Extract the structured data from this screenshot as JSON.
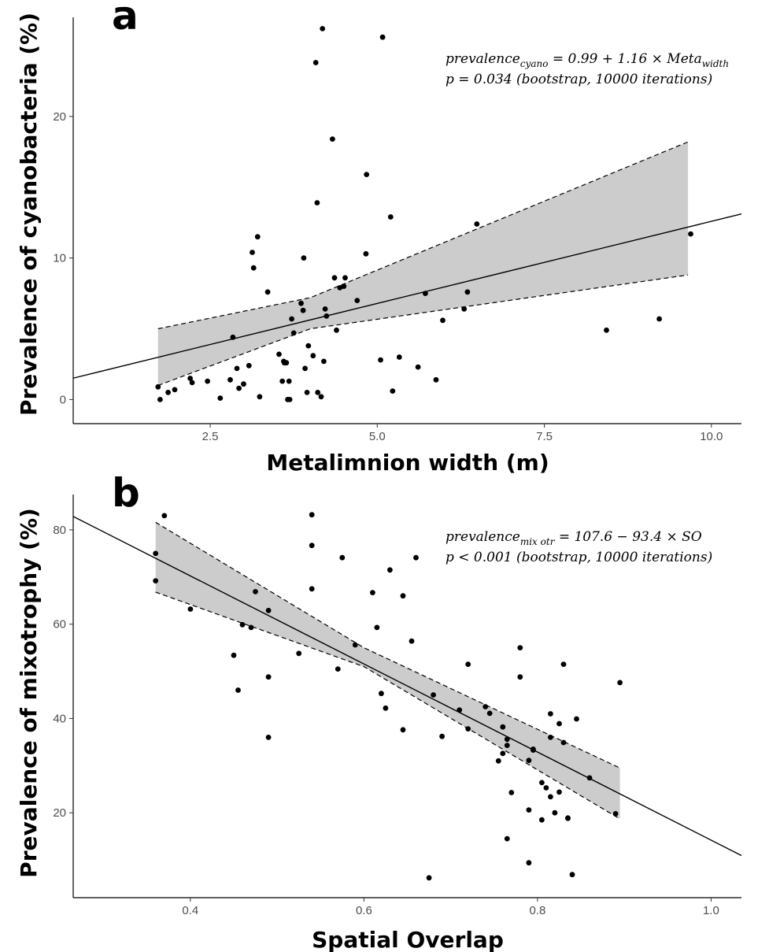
{
  "chart_data": [
    {
      "type": "scatter",
      "panel": "a",
      "title": "",
      "xlabel": "Metalimnion width (m)",
      "ylabel": "Prevalence of cyanobacteria (%)",
      "xlim": [
        0.45,
        10.45
      ],
      "ylim": [
        -1.7,
        27.0
      ],
      "xticks": [
        "2.5",
        "5.0",
        "7.5",
        "10.0"
      ],
      "yticks": [
        "0",
        "10",
        "20"
      ],
      "grid": false,
      "annotation": {
        "line1_main": "prevalence",
        "line1_sub": "cyano",
        "line1_rest": " = 0.99 + 1.16 × Meta",
        "line1_sub2": "width",
        "line2": "p = 0.034 (bootstrap, 10000 iterations)"
      },
      "fit": {
        "intercept": 0.99,
        "slope": 1.16,
        "x_range": [
          0.45,
          10.45
        ]
      },
      "ci_band": {
        "x": [
          1.72,
          4.0,
          9.65
        ],
        "lower": [
          1.0,
          5.0,
          8.8
        ],
        "upper": [
          5.0,
          7.2,
          18.2
        ]
      },
      "series": [
        {
          "x": [
            1.72,
            1.75,
            1.87,
            1.97,
            2.2,
            2.23,
            2.46,
            2.65,
            2.8,
            2.84,
            2.9,
            2.93,
            3.0,
            3.08,
            3.13,
            3.15,
            3.21,
            3.24,
            3.36,
            3.53,
            3.58,
            3.6,
            3.61,
            3.64,
            3.66,
            3.68,
            3.69,
            3.72,
            3.75,
            3.86,
            3.89,
            3.9,
            3.92,
            3.95,
            3.97,
            4.04,
            4.08,
            4.1,
            4.11,
            4.16,
            4.18,
            4.2,
            4.22,
            4.24,
            4.33,
            4.36,
            4.39,
            4.44,
            4.5,
            4.52,
            4.7,
            4.83,
            4.84,
            5.05,
            5.08,
            5.2,
            5.23,
            5.33,
            5.61,
            5.72,
            5.88,
            5.98,
            6.3,
            6.35,
            6.49,
            8.43,
            9.22,
            9.69
          ],
          "y": [
            0.9,
            0.0,
            0.5,
            0.7,
            1.5,
            1.2,
            1.3,
            0.1,
            1.4,
            4.4,
            2.2,
            0.8,
            1.1,
            2.4,
            10.4,
            9.3,
            11.5,
            0.2,
            7.6,
            3.2,
            1.3,
            2.7,
            2.6,
            2.6,
            0.0,
            1.3,
            0.0,
            5.7,
            4.7,
            6.8,
            6.3,
            10.0,
            2.2,
            0.5,
            3.8,
            3.1,
            23.8,
            13.9,
            0.5,
            0.2,
            26.2,
            2.7,
            6.4,
            5.9,
            18.4,
            8.6,
            4.9,
            7.9,
            8.0,
            8.6,
            7.0,
            10.3,
            15.9,
            2.8,
            25.6,
            12.9,
            0.6,
            3.0,
            2.3,
            7.5,
            1.4,
            5.6,
            6.4,
            7.6,
            12.4,
            4.9,
            5.7,
            11.7
          ]
        }
      ]
    },
    {
      "type": "scatter",
      "panel": "b",
      "title": "",
      "xlabel": "Spatial Overlap",
      "ylabel": "Prevalence of mixotrophy (%)",
      "xlim": [
        0.265,
        1.035
      ],
      "ylim": [
        2.0,
        87.5
      ],
      "xticks": [
        "0.4",
        "0.6",
        "0.8",
        "1.0"
      ],
      "yticks": [
        "20",
        "40",
        "60",
        "80"
      ],
      "grid": false,
      "annotation": {
        "line1_main": "prevalence",
        "line1_sub": "mix otr",
        "line1_rest": " = 107.6 − 93.4 × SO",
        "line1_sub2": "",
        "line2": "p < 0.001 (bootstrap, 10000 iterations)"
      },
      "fit": {
        "intercept": 107.6,
        "slope": -93.4,
        "x_range": [
          0.265,
          1.035
        ]
      },
      "ci_band": {
        "x": [
          0.36,
          0.6,
          0.895
        ],
        "lower": [
          66.8,
          51.0,
          18.7
        ],
        "upper": [
          81.6,
          55.0,
          29.5
        ]
      },
      "series": [
        {
          "x": [
            0.36,
            0.36,
            0.37,
            0.4,
            0.45,
            0.455,
            0.46,
            0.47,
            0.475,
            0.49,
            0.49,
            0.49,
            0.525,
            0.54,
            0.54,
            0.54,
            0.57,
            0.575,
            0.59,
            0.61,
            0.615,
            0.62,
            0.625,
            0.63,
            0.645,
            0.645,
            0.655,
            0.66,
            0.675,
            0.68,
            0.69,
            0.71,
            0.72,
            0.72,
            0.74,
            0.745,
            0.755,
            0.76,
            0.76,
            0.765,
            0.765,
            0.765,
            0.77,
            0.78,
            0.78,
            0.79,
            0.79,
            0.79,
            0.795,
            0.795,
            0.805,
            0.805,
            0.81,
            0.815,
            0.815,
            0.815,
            0.82,
            0.825,
            0.825,
            0.83,
            0.83,
            0.835,
            0.835,
            0.84,
            0.845,
            0.86,
            0.89,
            0.895
          ],
          "y": [
            69.2,
            75.0,
            83.0,
            63.2,
            53.4,
            46.0,
            59.9,
            59.3,
            66.9,
            62.9,
            48.8,
            36.0,
            53.8,
            83.2,
            76.7,
            67.5,
            50.5,
            74.1,
            55.6,
            66.7,
            59.3,
            45.3,
            42.2,
            71.5,
            37.6,
            66.0,
            56.4,
            74.1,
            6.2,
            45.0,
            36.2,
            41.8,
            51.5,
            37.8,
            42.5,
            41.1,
            31.0,
            38.2,
            32.6,
            14.5,
            35.6,
            34.3,
            24.3,
            55.0,
            48.8,
            31.1,
            9.4,
            20.6,
            33.5,
            33.3,
            18.5,
            26.4,
            25.3,
            36.0,
            41.0,
            23.4,
            20.0,
            24.4,
            38.9,
            51.5,
            34.9,
            18.8,
            18.9,
            6.9,
            39.9,
            27.4,
            19.8,
            47.6
          ]
        }
      ]
    }
  ]
}
